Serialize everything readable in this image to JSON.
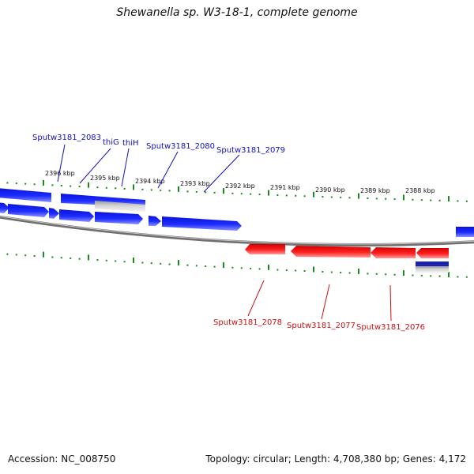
{
  "title": "Shewanella sp. W3-18-1, complete genome",
  "footer": {
    "accession": "Accession: NC_008750",
    "stats": "Topology: circular; Length: 4,708,380 bp; Genes: 4,172"
  },
  "colors": {
    "forward_gene": "#0b18e0",
    "reverse_gene": "#ee1111",
    "tick": "#1a8a1a",
    "backbone": "#8a8a8a",
    "forward_label": "#1010c0",
    "reverse_label": "#cc1010"
  },
  "scale": {
    "unit": "kbp",
    "labels": [
      "2396 kbp",
      "2395 kbp",
      "2394 kbp",
      "2393 kbp",
      "2392 kbp",
      "2391 kbp",
      "2390 kbp",
      "2389 kbp",
      "2388 kbp"
    ]
  },
  "genes_forward": [
    "Sputw3181_2083",
    "thiG",
    "thiH",
    "Sputw3181_2080",
    "Sputw3181_2079"
  ],
  "genes_reverse": [
    "Sputw3181_2078",
    "Sputw3181_2077",
    "Sputw3181_2076"
  ]
}
